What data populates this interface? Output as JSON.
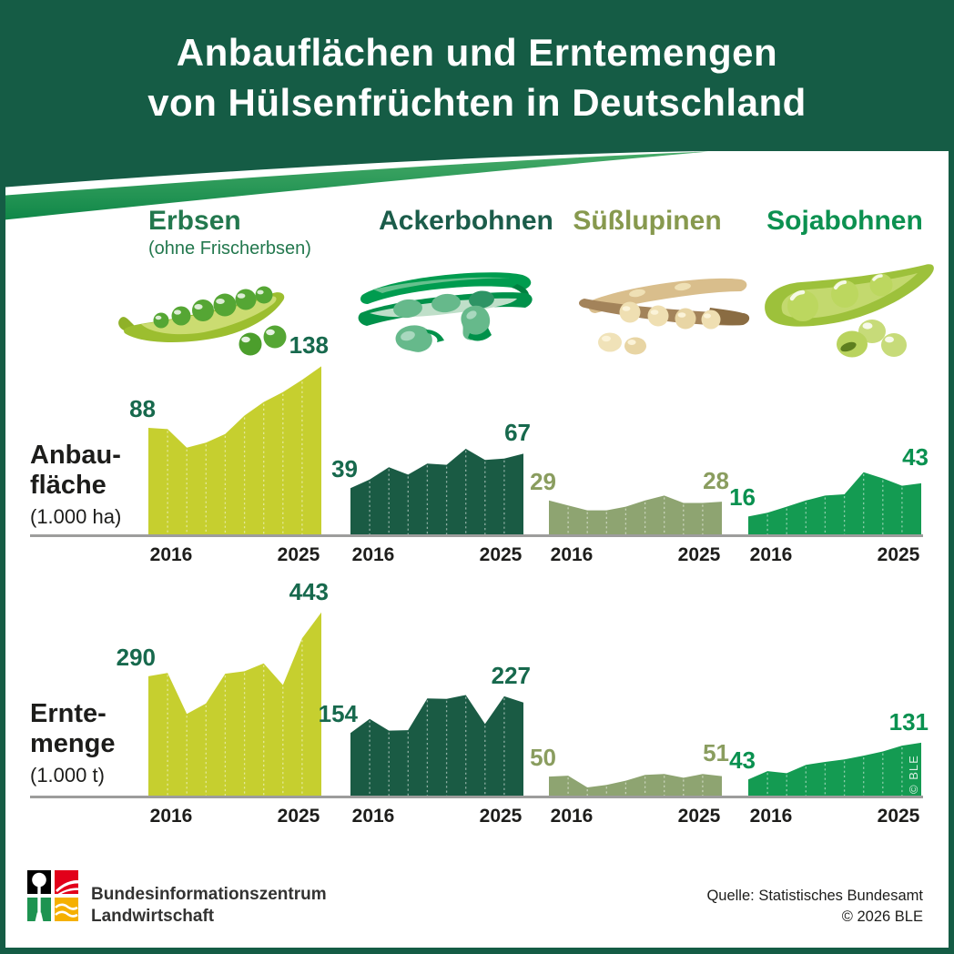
{
  "header": {
    "title_line1": "Anbauflächen und Erntemengen",
    "title_line2": "von Hülsenfrüchten in Deutschland",
    "bg_color": "#155C45",
    "swoosh_color_light": "#46AA68",
    "swoosh_color_dark": "#0F8748"
  },
  "crops": [
    {
      "name": "Erbsen",
      "subtitle": "(ohne Frischerbsen)",
      "icon": "pea-pod-illustration",
      "fill": "#C6CF2F",
      "title_color": "#23784E",
      "number_color": "#17694D"
    },
    {
      "name": "Ackerbohnen",
      "icon": "field-bean-pod-illustration",
      "fill": "#1A5B44",
      "title_color": "#1B5C4A",
      "number_color": "#17694D"
    },
    {
      "name": "Süßlupinen",
      "icon": "lupin-pod-illustration",
      "fill": "#8EA471",
      "title_color": "#87994E",
      "number_color": "#8A9D5F"
    },
    {
      "name": "Sojabohnen",
      "icon": "soybean-pod-illustration",
      "fill": "#149B52",
      "title_color": "#0C9150",
      "number_color": "#0A9150"
    }
  ],
  "chart_data": {
    "type": "area",
    "years": [
      2016,
      2017,
      2018,
      2019,
      2020,
      2021,
      2022,
      2023,
      2024,
      2025
    ],
    "x_tick_labels_shown": [
      "2016",
      "2025"
    ],
    "grid": "dashed-vertical-per-year",
    "rows": [
      {
        "label_line1": "Anbau-",
        "label_line2": "fläche",
        "unit": "(1.000 ha)",
        "series": [
          {
            "name": "Erbsen",
            "values": [
              88,
              87,
              72,
              76,
              83,
              98,
              109,
              117,
              127,
              138
            ],
            "label_start": 88,
            "label_end": 138
          },
          {
            "name": "Ackerbohnen",
            "values": [
              39,
              46,
              56,
              50,
              59,
              58,
              71,
              62,
              63,
              67
            ],
            "label_start": 39,
            "label_end": 67
          },
          {
            "name": "Süßlupinen",
            "values": [
              29,
              25,
              21,
              21,
              24,
              29,
              33,
              27,
              27,
              28
            ],
            "label_start": 29,
            "label_end": 28
          },
          {
            "name": "Sojabohnen",
            "values": [
              16,
              19,
              24,
              29,
              33,
              34,
              52,
              47,
              41,
              43
            ],
            "label_start": 16,
            "label_end": 43
          }
        ]
      },
      {
        "label_line1": "Ernte-",
        "label_line2": "menge",
        "unit": "(1.000 t)",
        "series": [
          {
            "name": "Erbsen",
            "values": [
              290,
              298,
              200,
              225,
              296,
              302,
              321,
              269,
              381,
              443
            ],
            "label_start": 290,
            "label_end": 443
          },
          {
            "name": "Ackerbohnen",
            "values": [
              154,
              188,
              160,
              161,
              237,
              236,
              245,
              176,
              242,
              227
            ],
            "label_start": 154,
            "label_end": 227
          },
          {
            "name": "Süßlupinen",
            "values": [
              50,
              52,
              24,
              30,
              40,
              54,
              56,
              47,
              56,
              51
            ],
            "label_start": 50,
            "label_end": 51
          },
          {
            "name": "Sojabohnen",
            "values": [
              43,
              63,
              58,
              78,
              85,
              91,
              100,
              110,
              124,
              131
            ],
            "label_start": 43,
            "label_end": 131
          }
        ]
      }
    ]
  },
  "colors": {
    "baseline_grey": "#9D9D9C",
    "year_label": "#1D1D1B"
  },
  "watermark": "© BLE",
  "footer": {
    "org_line1": "Bundesinformationszentrum",
    "org_line2": "Landwirtschaft",
    "source_line1": "Quelle: Statistisches Bundesamt",
    "source_line2": "© 2026 BLE",
    "logo_colors": {
      "black": "#000000",
      "red": "#E2001A",
      "green": "#1E9351",
      "yellow": "#F5B000"
    }
  }
}
